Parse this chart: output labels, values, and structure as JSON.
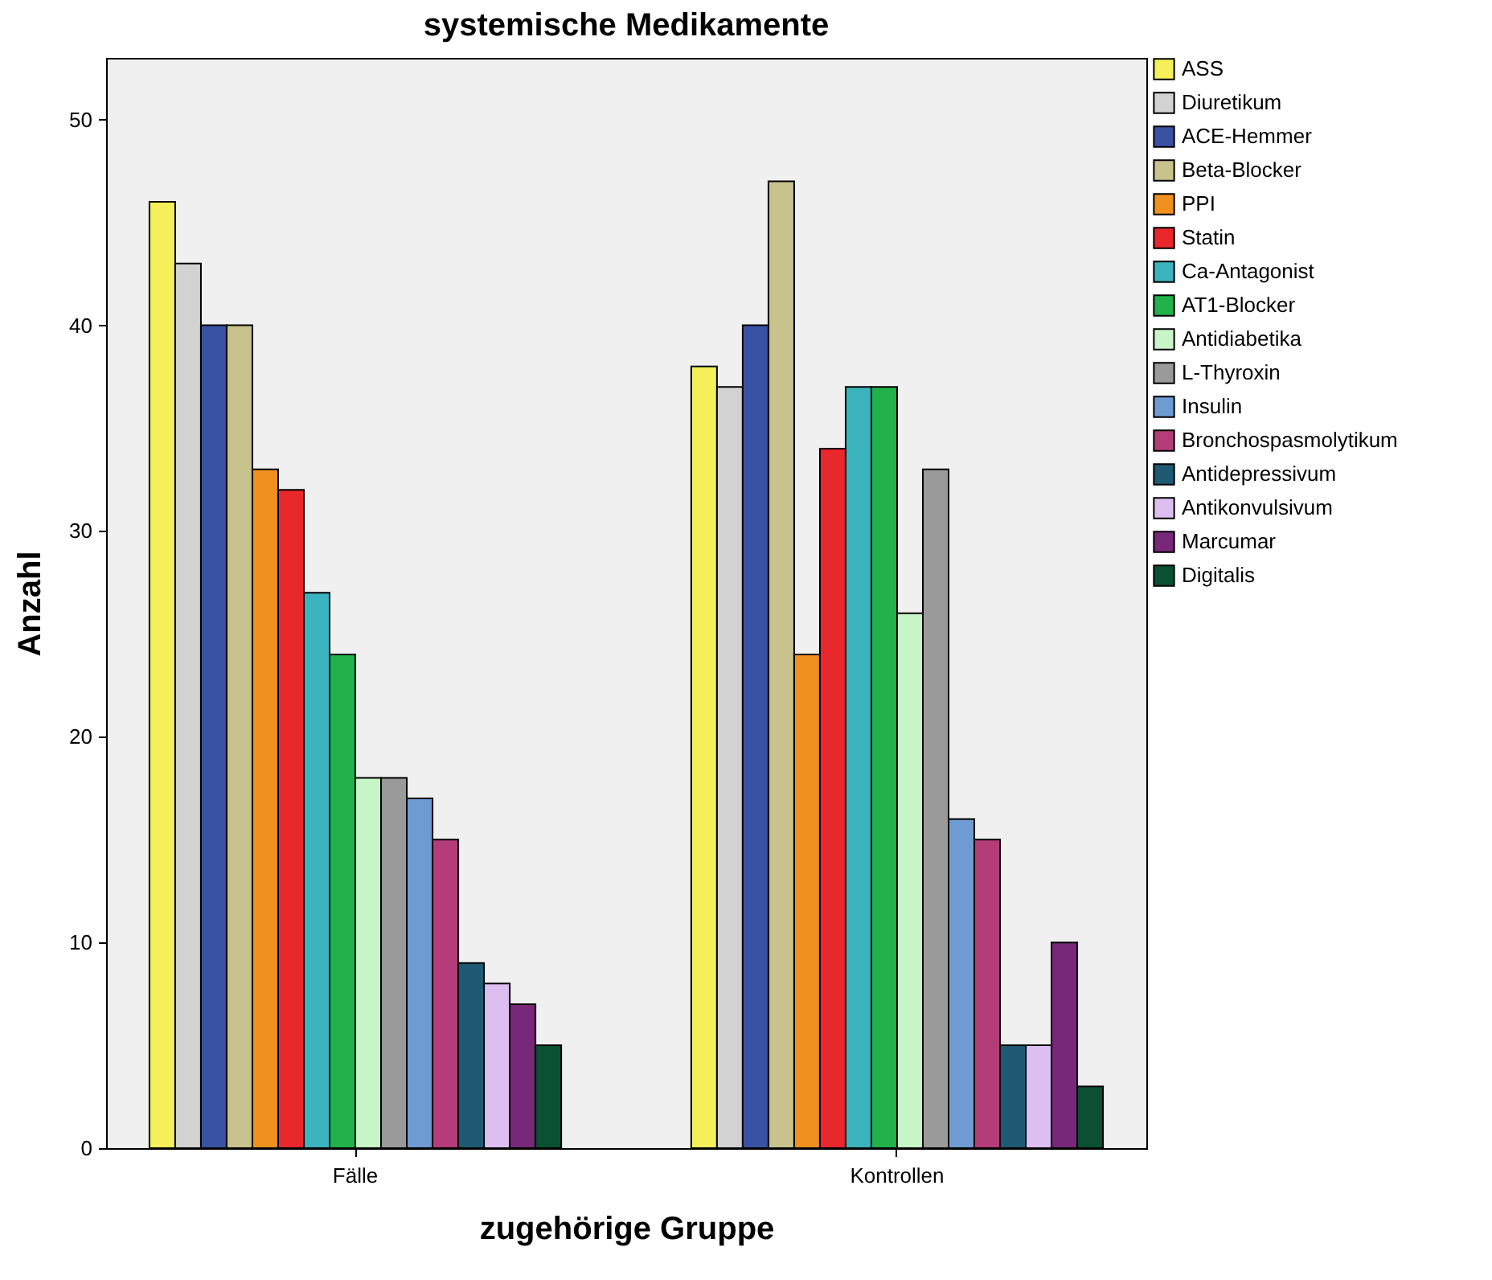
{
  "chart_data": {
    "type": "bar",
    "title": "systemische Medikamente",
    "xlabel": "zugehörige Gruppe",
    "ylabel": "Anzahl",
    "categories": [
      "Fälle",
      "Kontrollen"
    ],
    "series": [
      {
        "name": "ASS",
        "color": "#f5f05a",
        "values": [
          46,
          38
        ]
      },
      {
        "name": "Diuretikum",
        "color": "#d2d2d2",
        "values": [
          43,
          37
        ]
      },
      {
        "name": "ACE-Hemmer",
        "color": "#3a52a4",
        "values": [
          40,
          40
        ]
      },
      {
        "name": "Beta-Blocker",
        "color": "#c8c38c",
        "values": [
          40,
          47
        ]
      },
      {
        "name": "PPI",
        "color": "#f0901e",
        "values": [
          33,
          24
        ]
      },
      {
        "name": "Statin",
        "color": "#e8282d",
        "values": [
          32,
          34
        ]
      },
      {
        "name": "Ca-Antagonist",
        "color": "#3cb4be",
        "values": [
          27,
          37
        ]
      },
      {
        "name": "AT1-Blocker",
        "color": "#23b14b",
        "values": [
          24,
          37
        ]
      },
      {
        "name": "Antidiabetika",
        "color": "#c8f5c8",
        "values": [
          18,
          26
        ]
      },
      {
        "name": "L-Thyroxin",
        "color": "#9a9a9a",
        "values": [
          18,
          33
        ]
      },
      {
        "name": "Insulin",
        "color": "#6e9bd2",
        "values": [
          17,
          16
        ]
      },
      {
        "name": "Bronchospasmolytikum",
        "color": "#b43c78",
        "values": [
          15,
          15
        ]
      },
      {
        "name": "Antidepressivum",
        "color": "#1e5a73",
        "values": [
          9,
          5
        ]
      },
      {
        "name": "Antikonvulsivum",
        "color": "#dcbef0",
        "values": [
          8,
          5
        ]
      },
      {
        "name": "Marcumar",
        "color": "#782878",
        "values": [
          7,
          10
        ]
      },
      {
        "name": "Digitalis",
        "color": "#0a5032",
        "values": [
          5,
          3
        ]
      }
    ],
    "ylim": [
      0,
      53
    ],
    "yticks": [
      0,
      10,
      20,
      30,
      40,
      50
    ],
    "grid": false,
    "legend": "top right"
  }
}
